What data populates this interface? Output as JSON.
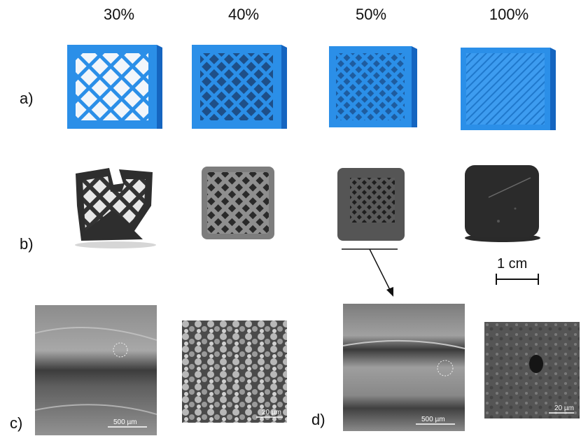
{
  "infill_labels": [
    "30%",
    "40%",
    "50%",
    "100%"
  ],
  "row_labels": {
    "a": "a)",
    "b": "b)",
    "c": "c)",
    "d": "d)"
  },
  "scale_bar": {
    "label": "1 cm"
  },
  "sem_scale_labels": {
    "c_left": "500 µm",
    "c_right": "20 µm",
    "d_left": "500 µm",
    "d_right": "20 µm"
  },
  "colors": {
    "printed_blue": "#2b8fe8",
    "blue_dark": "#1565c0",
    "sintered_dark": "#3a3a3a"
  }
}
